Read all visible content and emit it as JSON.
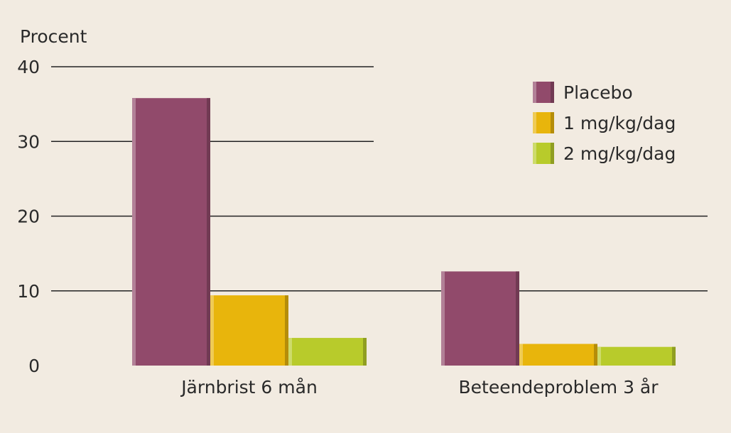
{
  "chart_data": {
    "type": "bar",
    "ylabel": "Procent",
    "ylim": [
      0,
      40
    ],
    "yticks": [
      0,
      10,
      20,
      30,
      40
    ],
    "categories": [
      "Järnbrist 6 mån",
      "Beteendeproblem 3 år"
    ],
    "series": [
      {
        "name": "Placebo",
        "values": [
          35.8,
          12.6
        ],
        "color": "#914a6b"
      },
      {
        "name": "1 mg/kg/dag",
        "values": [
          9.4,
          2.9
        ],
        "color": "#e8b50c"
      },
      {
        "name": "2 mg/kg/dag",
        "values": [
          3.7,
          2.5
        ],
        "color": "#b8cb2b"
      }
    ],
    "legend_position": "top-right",
    "grid": true,
    "background": "#f2ebe1"
  }
}
